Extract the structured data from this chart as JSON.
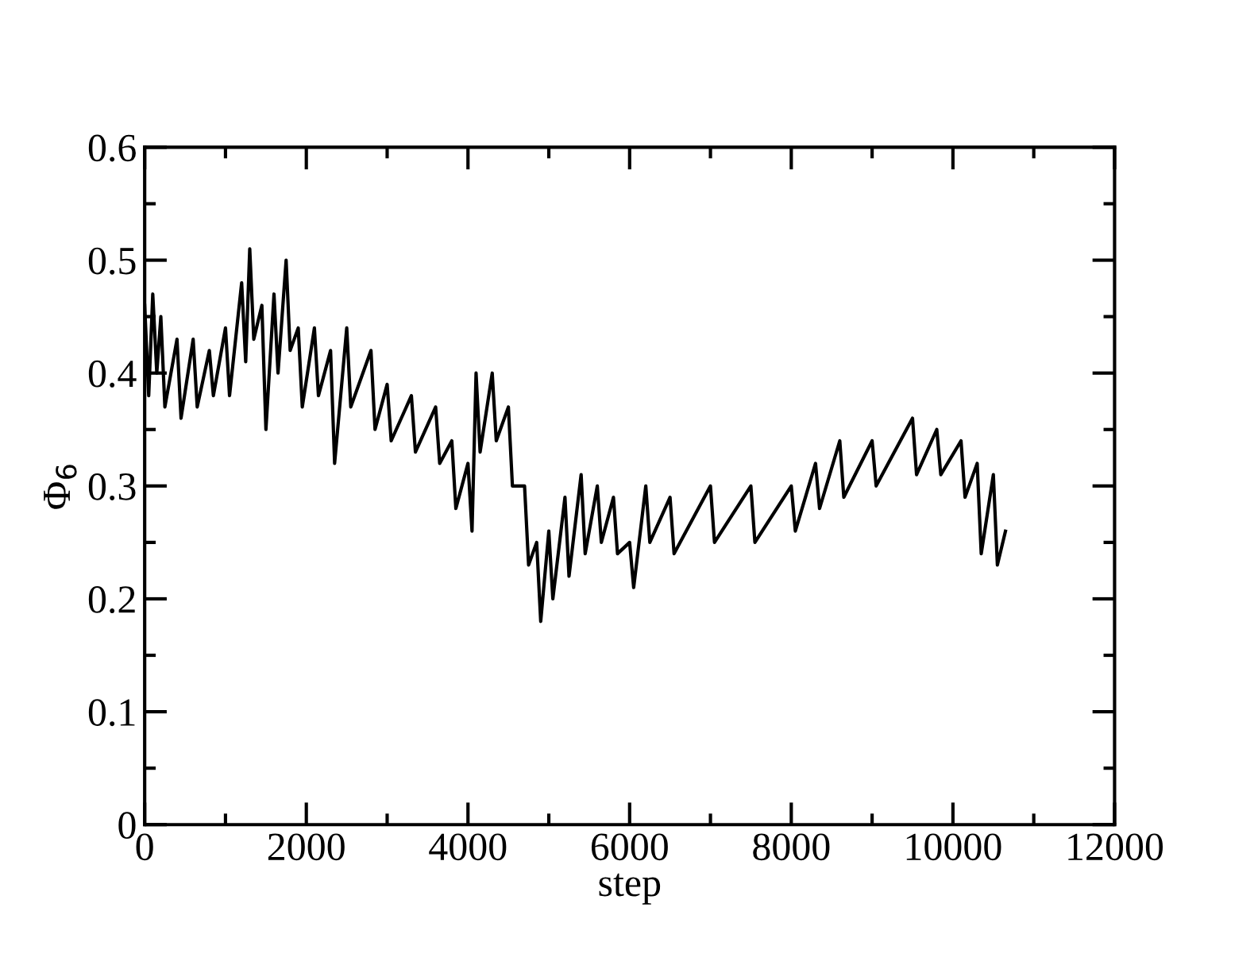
{
  "chart_data": {
    "type": "line",
    "xlabel": "step",
    "ylabel": "Φ$_{6}$",
    "series": [
      {
        "color": "#000000",
        "x": [
          0,
          50,
          100,
          150,
          200,
          250,
          400,
          450,
          600,
          650,
          800,
          850,
          1000,
          1050,
          1200,
          1250,
          1300,
          1350,
          1450,
          1500,
          1600,
          1650,
          1750,
          1800,
          1900,
          1950,
          2100,
          2150,
          2300,
          2350,
          2500,
          2550,
          2800,
          2850,
          3000,
          3050,
          3300,
          3350,
          3600,
          3650,
          3800,
          3850,
          4000,
          4050,
          4100,
          4150,
          4300,
          4350,
          4500,
          4550,
          4700,
          4750,
          4850,
          4900,
          5000,
          5050,
          5200,
          5250,
          5400,
          5450,
          5600,
          5650,
          5800,
          5850,
          6000,
          6050,
          6200,
          6250,
          6500,
          6550,
          7000,
          7050,
          7500,
          7550,
          8000,
          8050,
          8300,
          8350,
          8600,
          8650,
          9000,
          9050,
          9500,
          9550,
          9800,
          9850,
          10100,
          10150,
          10300,
          10350,
          10500,
          10550,
          10650
        ],
        "values": [
          0.46,
          0.38,
          0.47,
          0.4,
          0.45,
          0.37,
          0.43,
          0.36,
          0.43,
          0.37,
          0.42,
          0.38,
          0.44,
          0.38,
          0.48,
          0.41,
          0.51,
          0.43,
          0.46,
          0.35,
          0.47,
          0.4,
          0.5,
          0.42,
          0.44,
          0.37,
          0.44,
          0.38,
          0.42,
          0.32,
          0.44,
          0.37,
          0.42,
          0.35,
          0.39,
          0.34,
          0.38,
          0.33,
          0.37,
          0.32,
          0.34,
          0.28,
          0.32,
          0.26,
          0.4,
          0.33,
          0.4,
          0.34,
          0.37,
          0.3,
          0.3,
          0.23,
          0.25,
          0.18,
          0.26,
          0.2,
          0.29,
          0.22,
          0.31,
          0.24,
          0.3,
          0.25,
          0.29,
          0.24,
          0.25,
          0.21,
          0.3,
          0.25,
          0.29,
          0.24,
          0.3,
          0.25,
          0.3,
          0.25,
          0.3,
          0.26,
          0.32,
          0.28,
          0.34,
          0.29,
          0.34,
          0.3,
          0.36,
          0.31,
          0.35,
          0.31,
          0.34,
          0.29,
          0.32,
          0.24,
          0.31,
          0.23,
          0.26
        ]
      }
    ],
    "xlim": [
      0,
      12000
    ],
    "xticks": [
      0,
      2000,
      4000,
      6000,
      8000,
      10000,
      12000
    ],
    "ylim": [
      0,
      0.6
    ],
    "yticks": [
      0,
      0.1,
      0.2,
      0.3,
      0.4,
      0.5,
      0.6
    ],
    "grid": false,
    "legend": false,
    "marker": "none",
    "line_style": "solid"
  }
}
